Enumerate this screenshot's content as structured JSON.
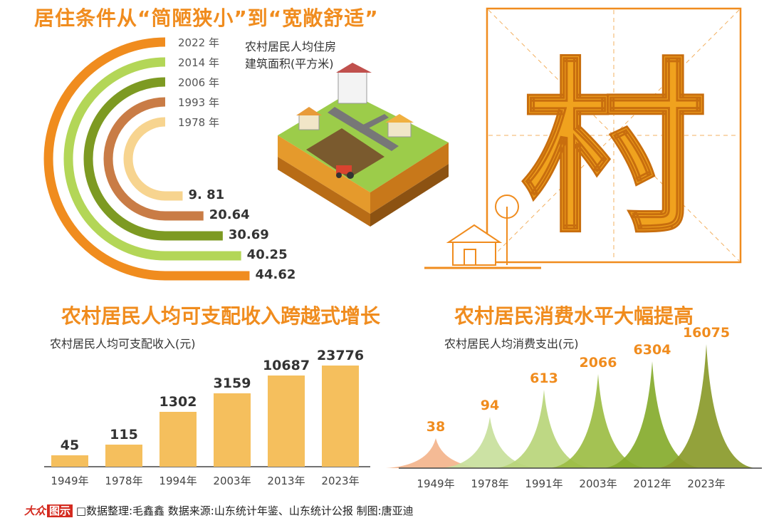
{
  "header": {
    "title": "居住条件从“简陋狭小”到“宽敞舒适”"
  },
  "chart_data": [
    {
      "type": "bar",
      "subtitle_lines": [
        "农村居民人均住房",
        "建筑面积(平方米)"
      ],
      "categories": [
        "1978年",
        "1993年",
        "2006年",
        "2014年",
        "2022年"
      ],
      "labels": [
        "1978 年",
        "1993 年",
        "2006 年",
        "2014 年",
        "2022 年"
      ],
      "values": [
        9.81,
        20.64,
        30.69,
        40.25,
        44.62
      ],
      "value_labels": [
        "9. 81",
        "20.64",
        "30.69",
        "40.25",
        "44.62"
      ],
      "colors": [
        "#f7d48f",
        "#c97c46",
        "#7d9a22",
        "#b3d657",
        "#f08c1e"
      ]
    },
    {
      "type": "bar",
      "title": "农村居民人均可支配收入跨越式增长",
      "subtitle": "农村居民人均可支配收入(元)",
      "categories": [
        "1949年",
        "1978年",
        "1994年",
        "2003年",
        "2013年",
        "2023年"
      ],
      "values": [
        45,
        115,
        1302,
        3159,
        10687,
        23776
      ],
      "color": "#f5bf5d"
    },
    {
      "type": "area",
      "title": "农村居民消费水平大幅提高",
      "subtitle": "农村居民人均消费支出(元)",
      "categories": [
        "1949年",
        "1978年",
        "1991年",
        "2003年",
        "2012年",
        "2023年"
      ],
      "values": [
        38,
        94,
        613,
        2066,
        6304,
        16075
      ],
      "colors": [
        "#f3b48c",
        "#c8e09c",
        "#b8d57a",
        "#9cbd44",
        "#85ab2c",
        "#8a9a2a"
      ]
    }
  ],
  "logo": {
    "text_a": "大众",
    "text_b": "图示"
  },
  "footer": {
    "text": "□数据整理:毛鑫鑫    数据来源:山东统计年鉴、山东统计公报    制图:唐亚迪"
  },
  "emblem": {
    "char": "村",
    "color": "#f0a21e"
  }
}
